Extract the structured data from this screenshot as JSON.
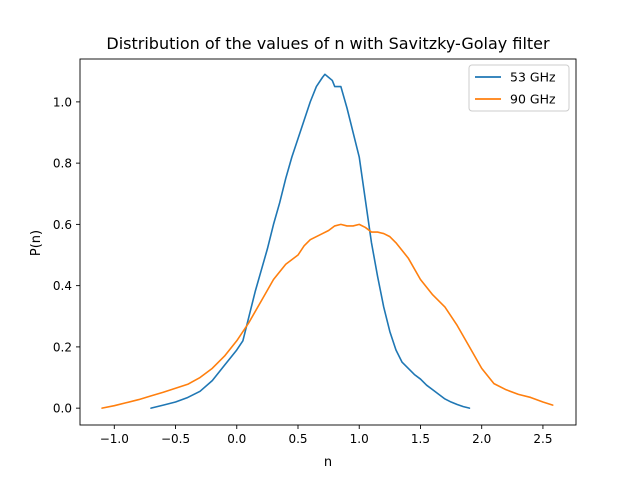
{
  "chart_data": {
    "type": "line",
    "title": "Distribution of the values of n with Savitzky-Golay filter",
    "xlabel": "n",
    "ylabel": "P(n)",
    "xlim": [
      -1.28,
      2.77
    ],
    "ylim": [
      -0.055,
      1.14
    ],
    "xticks": [
      -1.0,
      -0.5,
      0.0,
      0.5,
      1.0,
      1.5,
      2.0,
      2.5
    ],
    "xtick_labels": [
      "−1.0",
      "−0.5",
      "0.0",
      "0.5",
      "1.0",
      "1.5",
      "2.0",
      "2.5"
    ],
    "yticks": [
      0.0,
      0.2,
      0.4,
      0.6,
      0.8,
      1.0
    ],
    "ytick_labels": [
      "0.0",
      "0.2",
      "0.4",
      "0.6",
      "0.8",
      "1.0"
    ],
    "grid": false,
    "legend_position": "upper right",
    "series": [
      {
        "name": "53 GHz",
        "color": "#1f77b4",
        "x": [
          -0.7,
          -0.6,
          -0.5,
          -0.4,
          -0.3,
          -0.2,
          -0.1,
          0.0,
          0.05,
          0.1,
          0.15,
          0.2,
          0.25,
          0.3,
          0.35,
          0.4,
          0.45,
          0.5,
          0.55,
          0.6,
          0.65,
          0.7,
          0.72,
          0.75,
          0.78,
          0.8,
          0.85,
          0.9,
          0.95,
          1.0,
          1.05,
          1.1,
          1.15,
          1.2,
          1.25,
          1.3,
          1.35,
          1.4,
          1.45,
          1.5,
          1.55,
          1.6,
          1.65,
          1.7,
          1.75,
          1.8,
          1.85,
          1.9
        ],
        "y": [
          0.0,
          0.01,
          0.02,
          0.035,
          0.055,
          0.09,
          0.14,
          0.19,
          0.22,
          0.3,
          0.38,
          0.45,
          0.52,
          0.6,
          0.67,
          0.75,
          0.82,
          0.88,
          0.94,
          1.0,
          1.05,
          1.08,
          1.09,
          1.08,
          1.07,
          1.05,
          1.05,
          0.98,
          0.9,
          0.82,
          0.68,
          0.54,
          0.43,
          0.33,
          0.25,
          0.19,
          0.15,
          0.13,
          0.11,
          0.095,
          0.075,
          0.06,
          0.045,
          0.03,
          0.02,
          0.012,
          0.005,
          0.0
        ]
      },
      {
        "name": "90 GHz",
        "color": "#ff7f0e",
        "x": [
          -1.1,
          -1.0,
          -0.9,
          -0.8,
          -0.7,
          -0.6,
          -0.5,
          -0.4,
          -0.3,
          -0.2,
          -0.1,
          0.0,
          0.1,
          0.2,
          0.3,
          0.4,
          0.5,
          0.55,
          0.6,
          0.7,
          0.75,
          0.8,
          0.85,
          0.9,
          0.95,
          1.0,
          1.05,
          1.1,
          1.15,
          1.2,
          1.25,
          1.3,
          1.4,
          1.5,
          1.6,
          1.7,
          1.8,
          1.9,
          2.0,
          2.1,
          2.2,
          2.3,
          2.4,
          2.5,
          2.58
        ],
        "y": [
          0.0,
          0.008,
          0.018,
          0.028,
          0.04,
          0.052,
          0.065,
          0.078,
          0.1,
          0.13,
          0.17,
          0.22,
          0.28,
          0.35,
          0.42,
          0.47,
          0.5,
          0.53,
          0.55,
          0.57,
          0.58,
          0.595,
          0.6,
          0.595,
          0.595,
          0.6,
          0.59,
          0.575,
          0.575,
          0.57,
          0.56,
          0.54,
          0.49,
          0.42,
          0.37,
          0.33,
          0.27,
          0.2,
          0.13,
          0.08,
          0.06,
          0.045,
          0.035,
          0.02,
          0.01
        ]
      }
    ]
  }
}
